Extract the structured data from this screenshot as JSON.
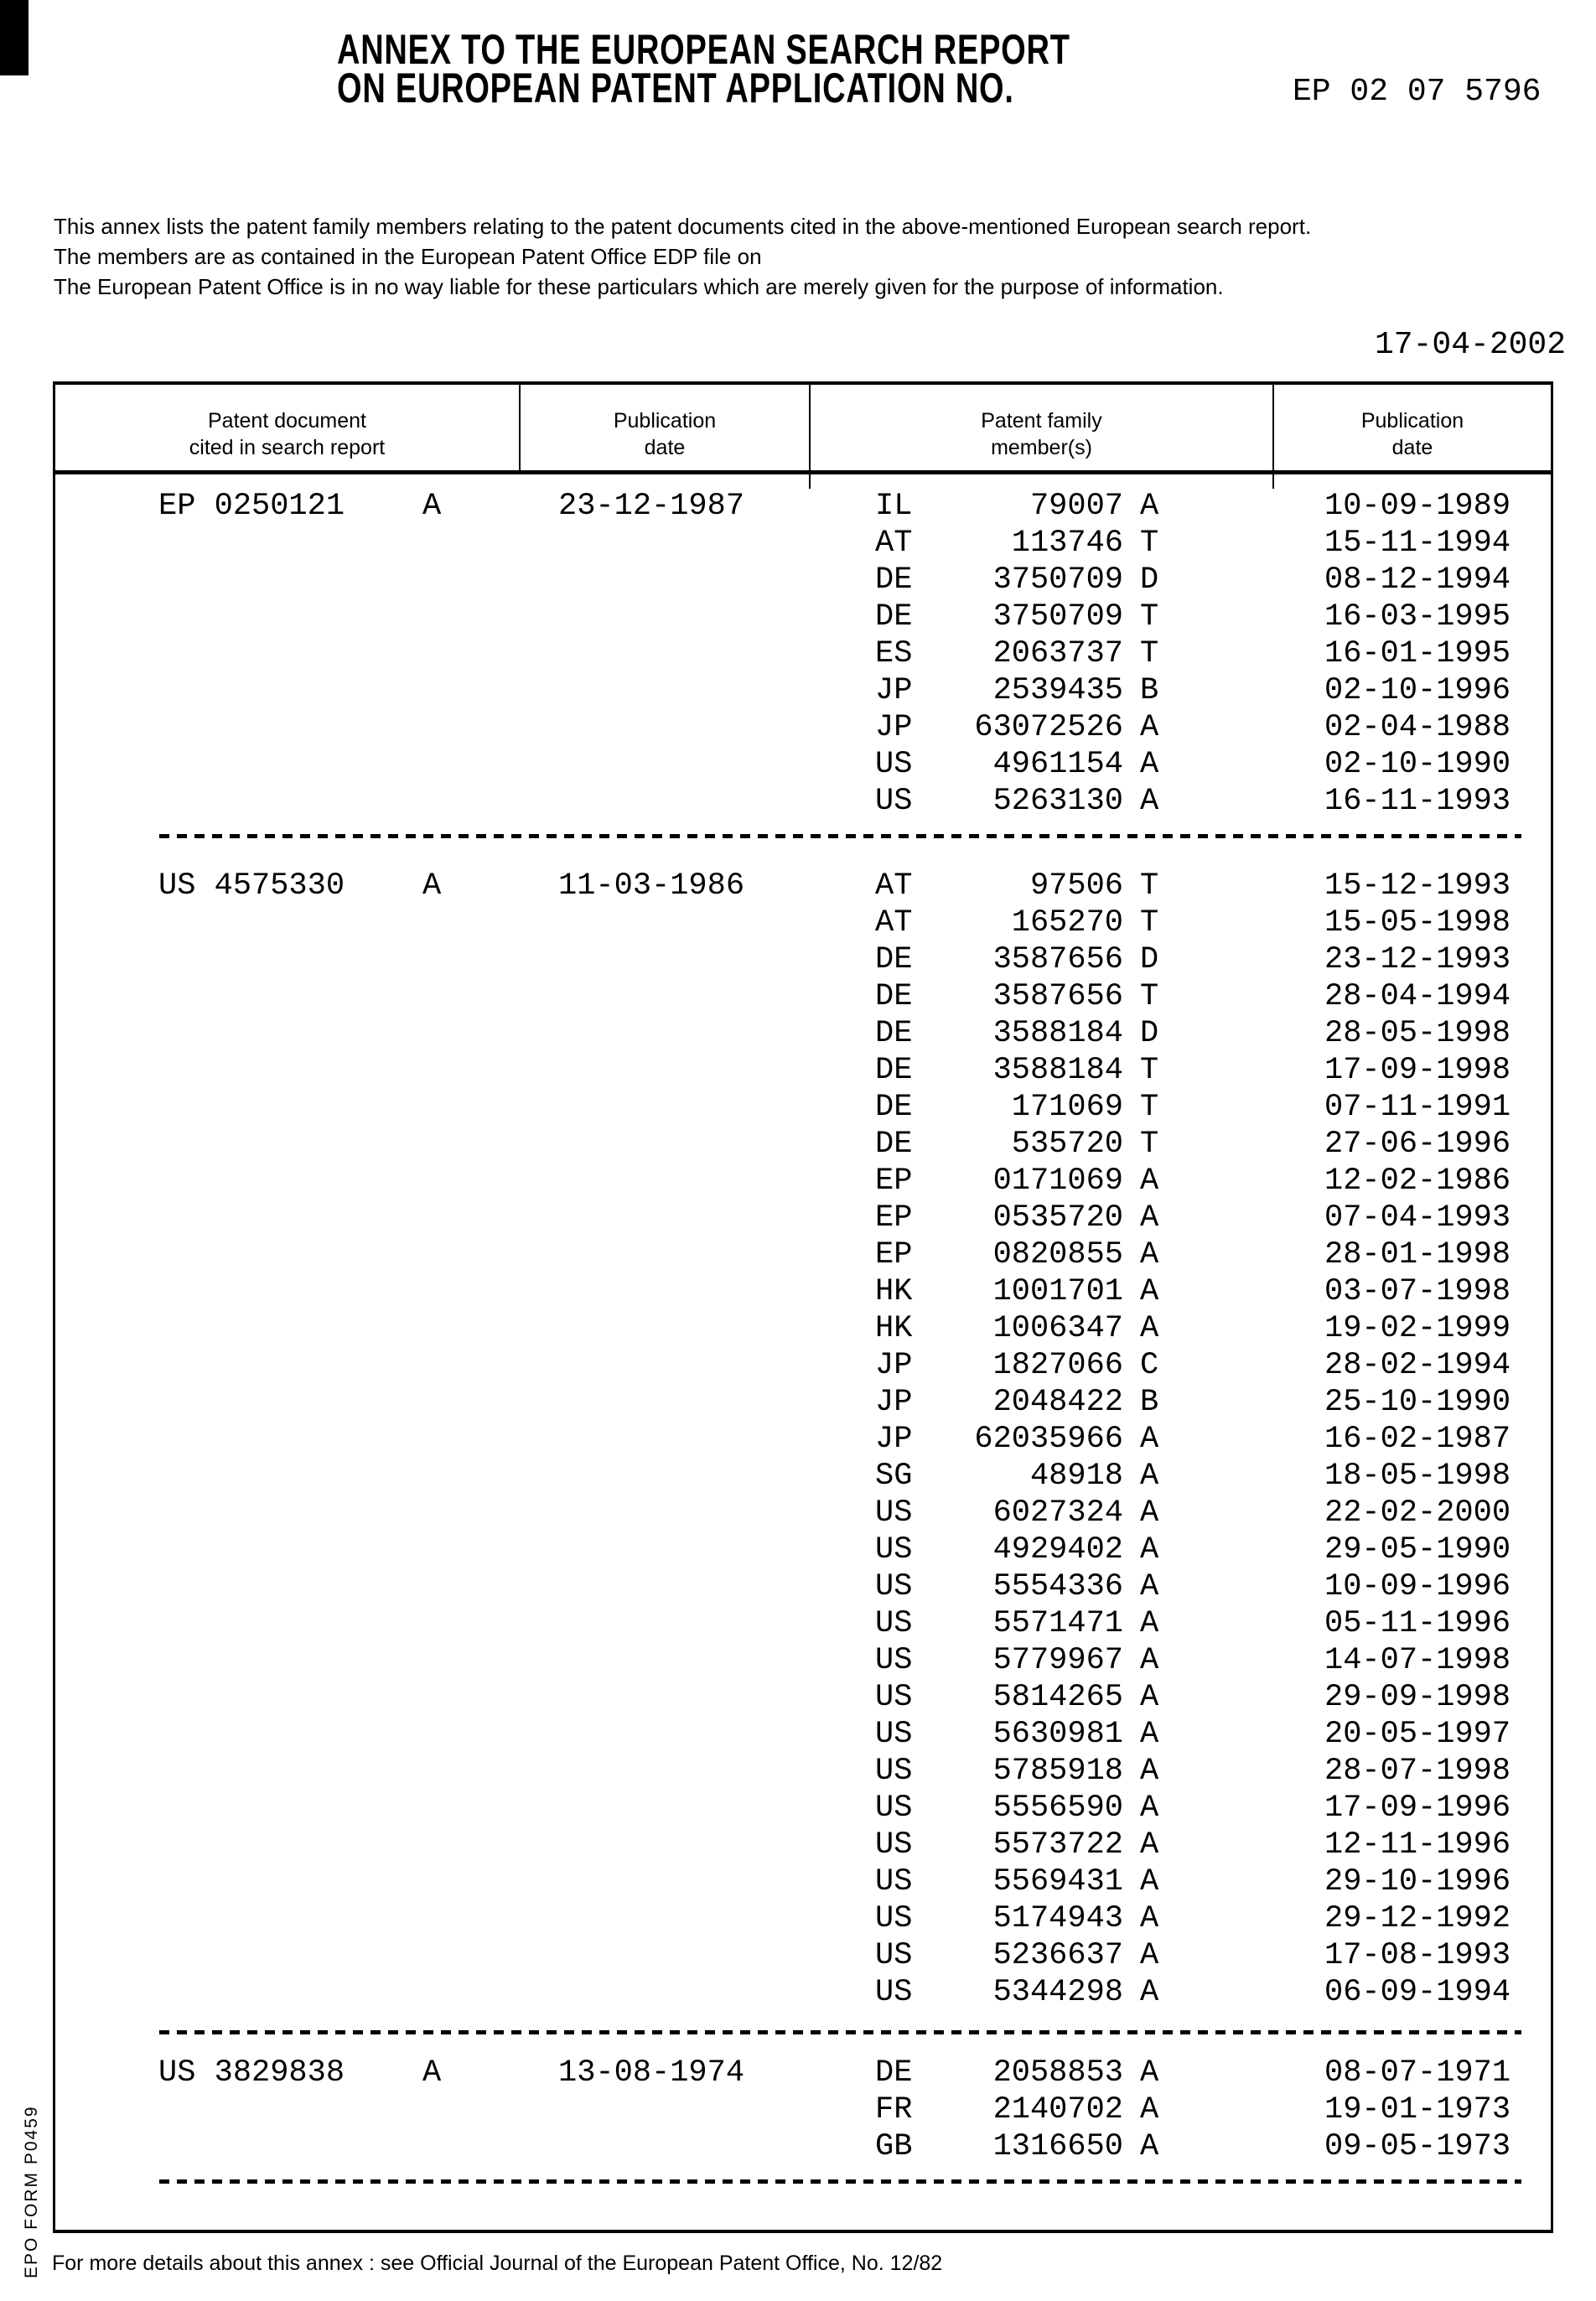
{
  "colors": {
    "ink": "#000000",
    "paper": "#ffffff"
  },
  "document": {
    "title_line1": "ANNEX TO THE EUROPEAN SEARCH REPORT",
    "title_line2": "ON EUROPEAN PATENT APPLICATION NO.",
    "application_number": "EP 02 07 5796",
    "intro_lines": [
      "This annex lists the patent family members relating to the patent documents cited in the above-mentioned European search report.",
      "The members are as contained in the European Patent Office EDP file on",
      "The European Patent Office is in no way liable for these particulars which are merely given for the purpose of information."
    ],
    "report_date": "17-04-2002",
    "footer_note": "For more details about this annex : see Official Journal of the European Patent Office, No. 12/82",
    "form_label": "EPO FORM P0459"
  },
  "table": {
    "headers": [
      {
        "line1": "Patent document",
        "line2": "cited in search report"
      },
      {
        "line1": "Publication",
        "line2": "date"
      },
      {
        "line1": "Patent family",
        "line2": "member(s)"
      },
      {
        "line1": "Publication",
        "line2": "date"
      }
    ],
    "blocks": [
      {
        "cited_document": "EP 0250121",
        "kind": "A",
        "publication_date": "23-12-1987",
        "members": [
          {
            "country": "IL",
            "number": "79007",
            "kind": "A",
            "date": "10-09-1989"
          },
          {
            "country": "AT",
            "number": "113746",
            "kind": "T",
            "date": "15-11-1994"
          },
          {
            "country": "DE",
            "number": "3750709",
            "kind": "D",
            "date": "08-12-1994"
          },
          {
            "country": "DE",
            "number": "3750709",
            "kind": "T",
            "date": "16-03-1995"
          },
          {
            "country": "ES",
            "number": "2063737",
            "kind": "T",
            "date": "16-01-1995"
          },
          {
            "country": "JP",
            "number": "2539435",
            "kind": "B",
            "date": "02-10-1996"
          },
          {
            "country": "JP",
            "number": "63072526",
            "kind": "A",
            "date": "02-04-1988"
          },
          {
            "country": "US",
            "number": "4961154",
            "kind": "A",
            "date": "02-10-1990"
          },
          {
            "country": "US",
            "number": "5263130",
            "kind": "A",
            "date": "16-11-1993"
          }
        ]
      },
      {
        "cited_document": "US 4575330",
        "kind": "A",
        "publication_date": "11-03-1986",
        "members": [
          {
            "country": "AT",
            "number": "97506",
            "kind": "T",
            "date": "15-12-1993"
          },
          {
            "country": "AT",
            "number": "165270",
            "kind": "T",
            "date": "15-05-1998"
          },
          {
            "country": "DE",
            "number": "3587656",
            "kind": "D",
            "date": "23-12-1993"
          },
          {
            "country": "DE",
            "number": "3587656",
            "kind": "T",
            "date": "28-04-1994"
          },
          {
            "country": "DE",
            "number": "3588184",
            "kind": "D",
            "date": "28-05-1998"
          },
          {
            "country": "DE",
            "number": "3588184",
            "kind": "T",
            "date": "17-09-1998"
          },
          {
            "country": "DE",
            "number": "171069",
            "kind": "T",
            "date": "07-11-1991"
          },
          {
            "country": "DE",
            "number": "535720",
            "kind": "T",
            "date": "27-06-1996"
          },
          {
            "country": "EP",
            "number": "0171069",
            "kind": "A",
            "date": "12-02-1986"
          },
          {
            "country": "EP",
            "number": "0535720",
            "kind": "A",
            "date": "07-04-1993"
          },
          {
            "country": "EP",
            "number": "0820855",
            "kind": "A",
            "date": "28-01-1998"
          },
          {
            "country": "HK",
            "number": "1001701",
            "kind": "A",
            "date": "03-07-1998"
          },
          {
            "country": "HK",
            "number": "1006347",
            "kind": "A",
            "date": "19-02-1999"
          },
          {
            "country": "JP",
            "number": "1827066",
            "kind": "C",
            "date": "28-02-1994"
          },
          {
            "country": "JP",
            "number": "2048422",
            "kind": "B",
            "date": "25-10-1990"
          },
          {
            "country": "JP",
            "number": "62035966",
            "kind": "A",
            "date": "16-02-1987"
          },
          {
            "country": "SG",
            "number": "48918",
            "kind": "A",
            "date": "18-05-1998"
          },
          {
            "country": "US",
            "number": "6027324",
            "kind": "A",
            "date": "22-02-2000"
          },
          {
            "country": "US",
            "number": "4929402",
            "kind": "A",
            "date": "29-05-1990"
          },
          {
            "country": "US",
            "number": "5554336",
            "kind": "A",
            "date": "10-09-1996"
          },
          {
            "country": "US",
            "number": "5571471",
            "kind": "A",
            "date": "05-11-1996"
          },
          {
            "country": "US",
            "number": "5779967",
            "kind": "A",
            "date": "14-07-1998"
          },
          {
            "country": "US",
            "number": "5814265",
            "kind": "A",
            "date": "29-09-1998"
          },
          {
            "country": "US",
            "number": "5630981",
            "kind": "A",
            "date": "20-05-1997"
          },
          {
            "country": "US",
            "number": "5785918",
            "kind": "A",
            "date": "28-07-1998"
          },
          {
            "country": "US",
            "number": "5556590",
            "kind": "A",
            "date": "17-09-1996"
          },
          {
            "country": "US",
            "number": "5573722",
            "kind": "A",
            "date": "12-11-1996"
          },
          {
            "country": "US",
            "number": "5569431",
            "kind": "A",
            "date": "29-10-1996"
          },
          {
            "country": "US",
            "number": "5174943",
            "kind": "A",
            "date": "29-12-1992"
          },
          {
            "country": "US",
            "number": "5236637",
            "kind": "A",
            "date": "17-08-1993"
          },
          {
            "country": "US",
            "number": "5344298",
            "kind": "A",
            "date": "06-09-1994"
          }
        ]
      },
      {
        "cited_document": "US 3829838",
        "kind": "A",
        "publication_date": "13-08-1974",
        "members": [
          {
            "country": "DE",
            "number": "2058853",
            "kind": "A",
            "date": "08-07-1971"
          },
          {
            "country": "FR",
            "number": "2140702",
            "kind": "A",
            "date": "19-01-1973"
          },
          {
            "country": "GB",
            "number": "1316650",
            "kind": "A",
            "date": "09-05-1973"
          }
        ]
      }
    ]
  }
}
